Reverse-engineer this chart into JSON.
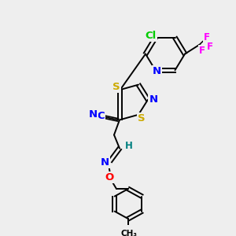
{
  "bg_color": "#eeeeee",
  "atom_colors": {
    "C": "#000000",
    "N": "#0000ff",
    "S": "#ccaa00",
    "O": "#ff0000",
    "F": "#ff00ff",
    "Cl": "#00cc00",
    "H": "#008080"
  },
  "bond_color": "#000000",
  "bond_width": 1.4,
  "font_size": 8.5,
  "fig_size": [
    3.0,
    3.0
  ],
  "dpi": 100,
  "xlim": [
    0,
    300
  ],
  "ylim": [
    300,
    0
  ]
}
